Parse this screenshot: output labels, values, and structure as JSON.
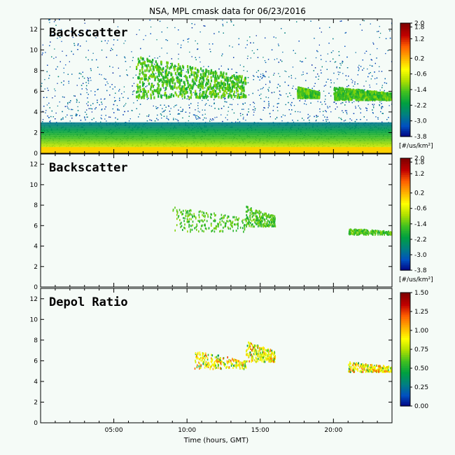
{
  "title": "NSA, MPL cmask data for 06/23/2016",
  "chart_data": [
    {
      "type": "heatmap",
      "panel_label": "Backscatter",
      "ylabel": "",
      "y_ticks": [
        "0",
        "2",
        "4",
        "6",
        "8",
        "10",
        "12"
      ],
      "ylim": [
        0,
        13
      ],
      "xlim": [
        0,
        24
      ],
      "colorbar": {
        "ticks": [
          "2.0",
          "1.8",
          "1.2",
          "0.2",
          "-0.6",
          "-1.4",
          "-2.2",
          "-3.0",
          "-3.8"
        ],
        "unit": "[#/us/km²]",
        "range": [
          -3.8,
          2.0
        ]
      },
      "features": {
        "surface_layer_km": [
          0,
          0.6
        ],
        "boundary_layer_top_km": 3.0,
        "cloud_layers": [
          {
            "hours": [
              6.5,
              14.0
            ],
            "base_km": 5.5,
            "top_km": 9.5
          },
          {
            "hours": [
              17.5,
              19.0
            ],
            "base_km": 5.5,
            "top_km": 6.5
          },
          {
            "hours": [
              20.0,
              24.0
            ],
            "base_km": 5.3,
            "top_km": 6.5
          }
        ]
      }
    },
    {
      "type": "heatmap",
      "panel_label": "Backscatter",
      "y_ticks": [
        "0",
        "2",
        "4",
        "6",
        "8",
        "10",
        "12"
      ],
      "ylim": [
        0,
        13
      ],
      "xlim": [
        0,
        24
      ],
      "colorbar": {
        "ticks": [
          "2.0",
          "1.8",
          "1.2",
          "0.2",
          "-0.6",
          "-1.4",
          "-2.2",
          "-3.0",
          "-3.8"
        ],
        "unit": "[#/us/km²]",
        "range": [
          -3.8,
          2.0
        ]
      },
      "features": {
        "masked": true,
        "cloud_layers": [
          {
            "hours": [
              9.0,
              14.0
            ],
            "base_km": 5.5,
            "top_km": 8.0
          },
          {
            "hours": [
              14.0,
              16.0
            ],
            "base_km": 6.0,
            "top_km": 8.0
          },
          {
            "hours": [
              21.0,
              24.0
            ],
            "base_km": 5.2,
            "top_km": 5.8
          }
        ]
      }
    },
    {
      "type": "heatmap",
      "panel_label": "Depol Ratio",
      "y_ticks": [
        "0",
        "2",
        "4",
        "6",
        "8",
        "10",
        "12"
      ],
      "ylim": [
        0,
        13
      ],
      "xlim": [
        0,
        24
      ],
      "xlabel": "Time (hours, GMT)",
      "x_ticks": [
        {
          "label": "05:00",
          "value": 5
        },
        {
          "label": "10:00",
          "value": 10
        },
        {
          "label": "15:00",
          "value": 15
        },
        {
          "label": "20:00",
          "value": 20
        }
      ],
      "colorbar": {
        "ticks": [
          "1.50",
          "1.25",
          "1.00",
          "0.75",
          "0.50",
          "0.25",
          "0.00"
        ],
        "range": [
          0.0,
          1.5
        ]
      },
      "features": {
        "masked": true,
        "cloud_layers": [
          {
            "hours": [
              10.5,
              14.0
            ],
            "base_km": 5.3,
            "top_km": 7.0
          },
          {
            "hours": [
              14.0,
              16.0
            ],
            "base_km": 6.0,
            "top_km": 8.0
          },
          {
            "hours": [
              21.0,
              24.0
            ],
            "base_km": 5.0,
            "top_km": 6.0
          }
        ]
      }
    }
  ],
  "colors": {
    "background": "#f5fbf7",
    "colormap": [
      "#000080",
      "#0050c0",
      "#008080",
      "#00a040",
      "#40c020",
      "#b0e000",
      "#ffff00",
      "#ffb000",
      "#ff6000",
      "#c00000",
      "#800000"
    ]
  }
}
